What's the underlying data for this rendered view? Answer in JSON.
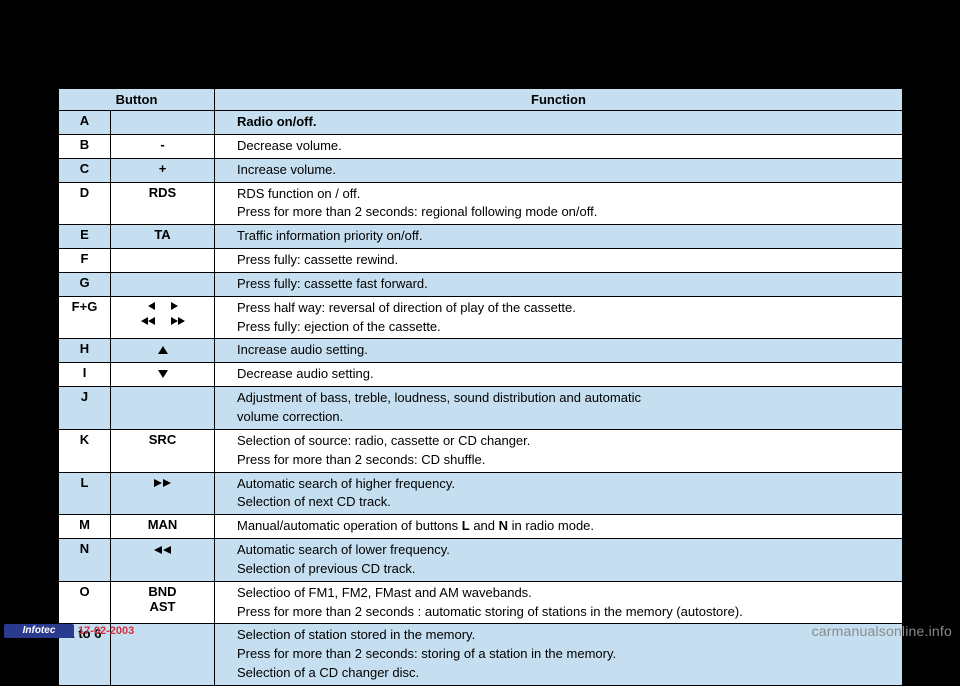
{
  "headers": {
    "button": "Button",
    "function": "Function"
  },
  "rows": [
    {
      "letter": "A",
      "sym_text": "",
      "icon": "",
      "fn": [
        "Radio on/off."
      ],
      "bold_first": true,
      "alt": true
    },
    {
      "letter": "B",
      "sym_text": "-",
      "icon": "",
      "fn": [
        "Decrease volume."
      ],
      "alt": false
    },
    {
      "letter": "C",
      "sym_text": "+",
      "icon": "",
      "fn": [
        "Increase volume."
      ],
      "alt": true
    },
    {
      "letter": "D",
      "sym_text": "RDS",
      "icon": "",
      "fn": [
        "RDS function on / off.",
        "Press for more than 2 seconds: regional following mode on/off."
      ],
      "alt": false
    },
    {
      "letter": "E",
      "sym_text": "TA",
      "icon": "",
      "fn": [
        "Traffic information priority on/off."
      ],
      "alt": true
    },
    {
      "letter": "F",
      "sym_text": "",
      "icon": "",
      "fn": [
        "Press fully: cassette rewind."
      ],
      "alt": false
    },
    {
      "letter": "G",
      "sym_text": "",
      "icon": "",
      "fn": [
        "Press fully: cassette fast forward."
      ],
      "alt": true
    },
    {
      "letter": "F+G",
      "sym_text": "",
      "icon": "fg",
      "fn": [
        "Press half way: reversal of direction of play of the cassette.",
        "Press fully: ejection of the cassette."
      ],
      "alt": false
    },
    {
      "letter": "H",
      "sym_text": "",
      "icon": "up",
      "fn": [
        "Increase audio setting."
      ],
      "alt": true
    },
    {
      "letter": "I",
      "sym_text": "",
      "icon": "down",
      "fn": [
        "Decrease audio setting."
      ],
      "alt": false
    },
    {
      "letter": "J",
      "sym_text": "",
      "icon": "",
      "fn": [
        "Adjustment of bass, treble, loudness, sound distribution and automatic",
        "volume correction."
      ],
      "alt": true
    },
    {
      "letter": "K",
      "sym_text": "SRC",
      "icon": "",
      "fn": [
        "Selection of source: radio, cassette or CD changer.",
        "Press for more than 2 seconds: CD shuffle."
      ],
      "alt": false
    },
    {
      "letter": "L",
      "sym_text": "",
      "icon": "ff",
      "fn": [
        "Automatic search of higher frequency.",
        "Selection of next CD track."
      ],
      "alt": true
    },
    {
      "letter": "M",
      "sym_text": "MAN",
      "icon": "",
      "fn_html": "Manual/automatic operation of buttons <b>L</b> and <b>N</b> in radio mode.",
      "alt": false
    },
    {
      "letter": "N",
      "sym_text": "",
      "icon": "rw",
      "fn": [
        "Automatic search of lower frequency.",
        "Selection of previous CD track."
      ],
      "alt": true
    },
    {
      "letter": "O",
      "sym_text": "BND\nAST",
      "icon": "",
      "fn": [
        "Selectioo of FM1, FM2, FMast and AM wavebands.",
        "Press for more than 2 seconds : automatic storing of stations in the memory (autostore)."
      ],
      "alt": false
    },
    {
      "letter": "1 to 6",
      "sym_text": "",
      "icon": "",
      "fn": [
        "Selection of station stored in the memory.",
        "Press for more than 2 seconds: storing of a station in the memory.",
        "Selection of a CD changer disc."
      ],
      "alt": true
    }
  ],
  "footer": {
    "brand": "Infotec",
    "date": "17-02-2003",
    "watermark": "carmanualsonline.info"
  }
}
